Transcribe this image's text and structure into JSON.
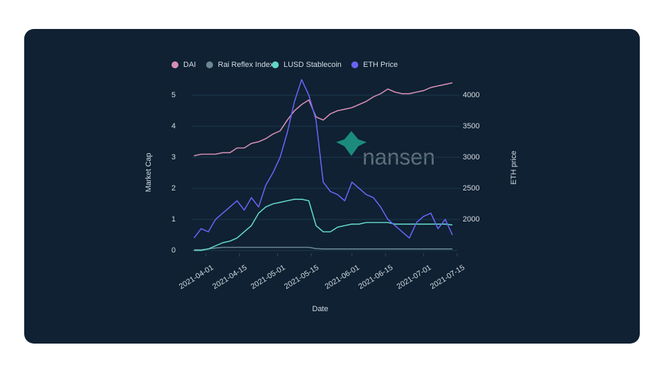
{
  "chart_data": {
    "type": "line",
    "watermark": "nansen",
    "ylabel": "Market Cap",
    "y2label": "ETH price",
    "xlabel": "Date",
    "x": [
      "2021-03-27",
      "2021-03-30",
      "2021-04-02",
      "2021-04-05",
      "2021-04-08",
      "2021-04-11",
      "2021-04-14",
      "2021-04-17",
      "2021-04-20",
      "2021-04-23",
      "2021-04-26",
      "2021-04-29",
      "2021-05-02",
      "2021-05-05",
      "2021-05-08",
      "2021-05-11",
      "2021-05-14",
      "2021-05-17",
      "2021-05-20",
      "2021-05-23",
      "2021-05-26",
      "2021-05-29",
      "2021-06-01",
      "2021-06-04",
      "2021-06-07",
      "2021-06-10",
      "2021-06-13",
      "2021-06-16",
      "2021-06-19",
      "2021-06-22",
      "2021-06-25",
      "2021-06-28",
      "2021-07-01",
      "2021-07-04",
      "2021-07-07",
      "2021-07-10",
      "2021-07-13"
    ],
    "xlim": [
      "2021-03-26",
      "2021-07-15"
    ],
    "xticks": [
      "2021-04-01",
      "2021-04-15",
      "2021-05-01",
      "2021-05-15",
      "2021-06-01",
      "2021-06-15",
      "2021-07-01",
      "2021-07-15"
    ],
    "ylim": [
      0,
      5.5
    ],
    "yticks": [
      0,
      1,
      2,
      3,
      4,
      5
    ],
    "y2lim": [
      1500,
      4250
    ],
    "y2ticks": [
      2000,
      2500,
      3000,
      3500,
      4000
    ],
    "grid": true,
    "legend": "top",
    "series": [
      {
        "name": "DAI",
        "color": "#d68fb5",
        "values": [
          3.05,
          3.1,
          3.1,
          3.1,
          3.15,
          3.15,
          3.3,
          3.3,
          3.45,
          3.5,
          3.6,
          3.75,
          3.85,
          4.2,
          4.5,
          4.7,
          4.85,
          4.3,
          4.2,
          4.4,
          4.5,
          4.55,
          4.6,
          4.7,
          4.8,
          4.95,
          5.05,
          5.2,
          5.1,
          5.05,
          5.05,
          5.1,
          5.15,
          5.25,
          5.3,
          5.35,
          5.4
        ]
      },
      {
        "name": "Rai Reflex Index",
        "color": "#6c8796",
        "values": [
          0.02,
          0.02,
          0.05,
          0.08,
          0.1,
          0.1,
          0.1,
          0.1,
          0.1,
          0.1,
          0.1,
          0.1,
          0.1,
          0.1,
          0.1,
          0.1,
          0.1,
          0.06,
          0.05,
          0.05,
          0.05,
          0.05,
          0.05,
          0.05,
          0.05,
          0.05,
          0.05,
          0.05,
          0.05,
          0.05,
          0.05,
          0.05,
          0.05,
          0.05,
          0.05,
          0.05,
          0.05
        ]
      },
      {
        "name": "LUSD Stablecoin",
        "color": "#62d6c8",
        "values": [
          0,
          0,
          0.05,
          0.15,
          0.25,
          0.3,
          0.4,
          0.6,
          0.8,
          1.2,
          1.4,
          1.5,
          1.55,
          1.6,
          1.65,
          1.65,
          1.6,
          0.8,
          0.6,
          0.6,
          0.75,
          0.8,
          0.85,
          0.85,
          0.9,
          0.9,
          0.9,
          0.9,
          0.85,
          0.85,
          0.85,
          0.85,
          0.85,
          0.85,
          0.85,
          0.85,
          0.82
        ]
      },
      {
        "name": "ETH Price",
        "color": "#6a62f2",
        "axis": "y2",
        "values": [
          1700,
          1850,
          1800,
          2000,
          2100,
          2200,
          2300,
          2150,
          2350,
          2200,
          2550,
          2750,
          3000,
          3400,
          3900,
          4250,
          4000,
          3600,
          2600,
          2450,
          2400,
          2300,
          2600,
          2500,
          2400,
          2350,
          2200,
          2000,
          1900,
          1800,
          1700,
          1950,
          2050,
          2100,
          1850,
          2000,
          1750
        ]
      }
    ]
  }
}
